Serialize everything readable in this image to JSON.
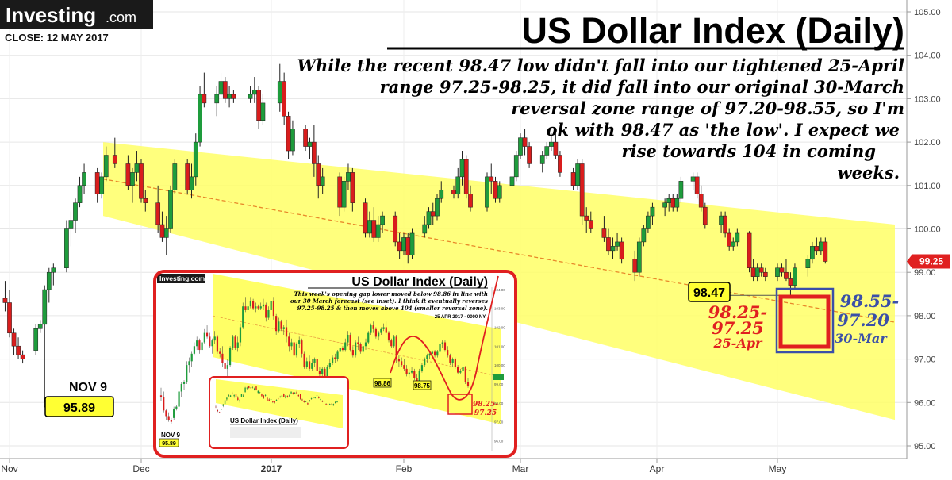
{
  "brand": {
    "name": "Investing",
    "suffix": ".com",
    "close_label": "CLOSE: 12 MAY 2017"
  },
  "headline": {
    "title": "US Dollar Index (Daily)",
    "commentary": [
      "While the recent 98.47 low didn't fall into our tightened 25-April",
      "range 97.25-98.25, it did fall into our original 30-March",
      "reversal zone range of 97.20-98.55, so I'm",
      "ok with 98.47 as 'the low'. I expect we",
      "rise towards 104 in coming",
      "weeks."
    ]
  },
  "annotations": {
    "nov9_label": "NOV 9",
    "nov9_value": "95.89",
    "low_value": "98.47",
    "last_price": "99.25",
    "range_apr": {
      "line1": "98.25-",
      "line2": "97.25",
      "date": "25-Apr"
    },
    "range_mar": {
      "line1": "98.55-",
      "line2": "97.20",
      "date": "30-Mar"
    }
  },
  "inset": {
    "brand": "Investing.com",
    "title": "US Dollar Index (Daily)",
    "note": [
      "This week's opening gap lower moved below 98.86 in line with",
      "our 30 March forecast (see inset). I think it eventually reverses",
      "97.25-98.25 & then moves above 104 (smaller reversal zone)."
    ],
    "date": "25 APR 2017 - 0000 NY",
    "label_a": "98.86",
    "label_b": "98.75",
    "range": {
      "line1": "98.25-",
      "line2": "97.25"
    },
    "nov": "NOV 9",
    "nov_value": "95.89",
    "inner_title": "US Dollar Index (Daily)"
  },
  "colors": {
    "up": "#1e9c3c",
    "down": "#d91d1d",
    "channel": "#ffff66",
    "accent_red": "#e02020",
    "accent_blue": "#3a4fa8"
  },
  "chart_data": {
    "type": "candlestick",
    "title": "US Dollar Index (Daily)",
    "ylim": [
      94.7,
      105.1
    ],
    "y_ticks": [
      "95.00",
      "96.00",
      "97.00",
      "98.00",
      "99.00",
      "100.00",
      "101.00",
      "102.00",
      "103.00",
      "104.00",
      "105.00"
    ],
    "x_ticks": [
      "Nov",
      "Dec",
      "2017",
      "Feb",
      "Mar",
      "Apr",
      "May"
    ],
    "channel": {
      "start_upper": 102.0,
      "start_lower": 100.3,
      "end_upper": 100.1,
      "end_lower": 95.6
    },
    "series_ohlc": [
      {
        "d": "2016-10-31",
        "o": 98.4,
        "h": 98.8,
        "l": 98.1,
        "c": 98.3
      },
      {
        "d": "2016-11-01",
        "o": 98.3,
        "h": 98.6,
        "l": 97.5,
        "c": 97.6
      },
      {
        "d": "2016-11-02",
        "o": 97.6,
        "h": 97.7,
        "l": 97.1,
        "c": 97.3
      },
      {
        "d": "2016-11-03",
        "o": 97.3,
        "h": 97.5,
        "l": 97.0,
        "c": 97.1
      },
      {
        "d": "2016-11-04",
        "o": 97.1,
        "h": 97.2,
        "l": 96.9,
        "c": 97.0
      },
      {
        "d": "2016-11-07",
        "o": 97.2,
        "h": 97.8,
        "l": 97.1,
        "c": 97.7
      },
      {
        "d": "2016-11-08",
        "o": 97.7,
        "h": 97.9,
        "l": 97.6,
        "c": 97.8
      },
      {
        "d": "2016-11-09",
        "o": 97.8,
        "h": 98.7,
        "l": 95.89,
        "c": 98.6
      },
      {
        "d": "2016-11-10",
        "o": 98.6,
        "h": 99.1,
        "l": 98.3,
        "c": 99.0
      },
      {
        "d": "2016-11-11",
        "o": 99.0,
        "h": 99.2,
        "l": 98.7,
        "c": 99.1
      },
      {
        "d": "2016-11-14",
        "o": 99.1,
        "h": 100.2,
        "l": 99.0,
        "c": 100.0
      },
      {
        "d": "2016-11-15",
        "o": 100.0,
        "h": 100.4,
        "l": 99.6,
        "c": 100.2
      },
      {
        "d": "2016-11-16",
        "o": 100.2,
        "h": 100.7,
        "l": 99.9,
        "c": 100.6
      },
      {
        "d": "2016-11-17",
        "o": 100.6,
        "h": 101.2,
        "l": 100.5,
        "c": 101.0
      },
      {
        "d": "2016-11-18",
        "o": 101.0,
        "h": 101.5,
        "l": 100.8,
        "c": 101.3
      },
      {
        "d": "2016-11-21",
        "o": 101.3,
        "h": 101.4,
        "l": 100.6,
        "c": 100.8
      },
      {
        "d": "2016-11-22",
        "o": 100.8,
        "h": 101.3,
        "l": 100.7,
        "c": 101.2
      },
      {
        "d": "2016-11-23",
        "o": 101.2,
        "h": 101.9,
        "l": 101.1,
        "c": 101.7
      },
      {
        "d": "2016-11-25",
        "o": 101.7,
        "h": 102.1,
        "l": 101.4,
        "c": 101.5
      },
      {
        "d": "2016-11-28",
        "o": 101.5,
        "h": 101.7,
        "l": 100.9,
        "c": 101.0
      },
      {
        "d": "2016-11-29",
        "o": 101.0,
        "h": 101.4,
        "l": 100.6,
        "c": 101.3
      },
      {
        "d": "2016-11-30",
        "o": 101.3,
        "h": 101.8,
        "l": 101.1,
        "c": 101.5
      },
      {
        "d": "2016-12-01",
        "o": 101.5,
        "h": 101.6,
        "l": 100.6,
        "c": 100.7
      },
      {
        "d": "2016-12-02",
        "o": 100.7,
        "h": 100.9,
        "l": 100.4,
        "c": 100.6
      },
      {
        "d": "2016-12-05",
        "o": 100.6,
        "h": 101.0,
        "l": 99.9,
        "c": 100.1
      },
      {
        "d": "2016-12-06",
        "o": 100.1,
        "h": 100.4,
        "l": 99.7,
        "c": 99.8
      },
      {
        "d": "2016-12-07",
        "o": 99.8,
        "h": 100.3,
        "l": 99.4,
        "c": 100.0
      },
      {
        "d": "2016-12-08",
        "o": 100.0,
        "h": 101.0,
        "l": 99.9,
        "c": 100.9
      },
      {
        "d": "2016-12-09",
        "o": 100.9,
        "h": 101.6,
        "l": 100.8,
        "c": 101.5
      },
      {
        "d": "2016-12-12",
        "o": 101.5,
        "h": 101.6,
        "l": 100.8,
        "c": 100.9
      },
      {
        "d": "2016-12-13",
        "o": 100.9,
        "h": 101.5,
        "l": 100.7,
        "c": 101.2
      },
      {
        "d": "2016-12-14",
        "o": 101.2,
        "h": 102.2,
        "l": 101.0,
        "c": 102.0
      },
      {
        "d": "2016-12-15",
        "o": 102.0,
        "h": 103.3,
        "l": 101.9,
        "c": 103.1
      },
      {
        "d": "2016-12-16",
        "o": 103.1,
        "h": 103.6,
        "l": 102.8,
        "c": 102.9
      },
      {
        "d": "2016-12-19",
        "o": 102.9,
        "h": 103.3,
        "l": 102.6,
        "c": 103.1
      },
      {
        "d": "2016-12-20",
        "o": 103.1,
        "h": 103.6,
        "l": 103.0,
        "c": 103.4
      },
      {
        "d": "2016-12-21",
        "o": 103.4,
        "h": 103.5,
        "l": 102.9,
        "c": 103.0
      },
      {
        "d": "2016-12-22",
        "o": 103.0,
        "h": 103.3,
        "l": 102.8,
        "c": 103.1
      },
      {
        "d": "2016-12-23",
        "o": 103.1,
        "h": 103.2,
        "l": 102.9,
        "c": 103.0
      },
      {
        "d": "2016-12-27",
        "o": 103.0,
        "h": 103.3,
        "l": 102.9,
        "c": 103.1
      },
      {
        "d": "2016-12-28",
        "o": 103.1,
        "h": 103.5,
        "l": 102.9,
        "c": 103.2
      },
      {
        "d": "2016-12-29",
        "o": 103.2,
        "h": 103.3,
        "l": 102.3,
        "c": 102.5
      },
      {
        "d": "2016-12-30",
        "o": 102.5,
        "h": 103.1,
        "l": 102.4,
        "c": 102.9
      },
      {
        "d": "2017-01-03",
        "o": 102.9,
        "h": 103.8,
        "l": 102.7,
        "c": 103.4
      },
      {
        "d": "2017-01-04",
        "o": 103.4,
        "h": 103.6,
        "l": 102.4,
        "c": 102.6
      },
      {
        "d": "2017-01-05",
        "o": 102.6,
        "h": 102.7,
        "l": 101.6,
        "c": 101.8
      },
      {
        "d": "2017-01-06",
        "o": 101.8,
        "h": 102.5,
        "l": 101.7,
        "c": 102.3
      },
      {
        "d": "2017-01-09",
        "o": 102.3,
        "h": 102.4,
        "l": 101.8,
        "c": 101.9
      },
      {
        "d": "2017-01-10",
        "o": 101.9,
        "h": 102.1,
        "l": 101.6,
        "c": 102.0
      },
      {
        "d": "2017-01-11",
        "o": 102.0,
        "h": 102.4,
        "l": 101.2,
        "c": 101.5
      },
      {
        "d": "2017-01-12",
        "o": 101.5,
        "h": 101.7,
        "l": 100.7,
        "c": 101.0
      },
      {
        "d": "2017-01-13",
        "o": 101.0,
        "h": 101.4,
        "l": 100.8,
        "c": 101.2
      },
      {
        "d": "2017-01-17",
        "o": 101.2,
        "h": 101.3,
        "l": 100.3,
        "c": 100.5
      },
      {
        "d": "2017-01-18",
        "o": 100.5,
        "h": 101.2,
        "l": 100.4,
        "c": 101.1
      },
      {
        "d": "2017-01-19",
        "o": 101.1,
        "h": 101.5,
        "l": 100.9,
        "c": 101.3
      },
      {
        "d": "2017-01-20",
        "o": 101.3,
        "h": 101.4,
        "l": 100.4,
        "c": 100.6
      },
      {
        "d": "2017-01-23",
        "o": 100.6,
        "h": 100.7,
        "l": 99.8,
        "c": 99.9
      },
      {
        "d": "2017-01-24",
        "o": 99.9,
        "h": 100.4,
        "l": 99.8,
        "c": 100.2
      },
      {
        "d": "2017-01-25",
        "o": 100.2,
        "h": 100.5,
        "l": 99.7,
        "c": 99.8
      },
      {
        "d": "2017-01-26",
        "o": 99.8,
        "h": 100.3,
        "l": 99.7,
        "c": 100.1
      },
      {
        "d": "2017-01-27",
        "o": 100.1,
        "h": 100.4,
        "l": 99.9,
        "c": 100.3
      },
      {
        "d": "2017-01-30",
        "o": 100.3,
        "h": 100.4,
        "l": 99.6,
        "c": 99.7
      },
      {
        "d": "2017-01-31",
        "o": 99.7,
        "h": 99.9,
        "l": 99.3,
        "c": 99.5
      },
      {
        "d": "2017-02-01",
        "o": 99.5,
        "h": 99.9,
        "l": 99.4,
        "c": 99.8
      },
      {
        "d": "2017-02-02",
        "o": 99.8,
        "h": 99.9,
        "l": 99.2,
        "c": 99.4
      },
      {
        "d": "2017-02-03",
        "o": 99.4,
        "h": 100.0,
        "l": 99.3,
        "c": 99.9
      },
      {
        "d": "2017-02-06",
        "o": 99.9,
        "h": 100.3,
        "l": 99.8,
        "c": 100.1
      },
      {
        "d": "2017-02-07",
        "o": 100.1,
        "h": 100.5,
        "l": 100.0,
        "c": 100.4
      },
      {
        "d": "2017-02-08",
        "o": 100.4,
        "h": 100.6,
        "l": 100.1,
        "c": 100.3
      },
      {
        "d": "2017-02-09",
        "o": 100.3,
        "h": 100.8,
        "l": 100.2,
        "c": 100.7
      },
      {
        "d": "2017-02-10",
        "o": 100.7,
        "h": 101.1,
        "l": 100.6,
        "c": 100.9
      },
      {
        "d": "2017-02-13",
        "o": 100.9,
        "h": 101.0,
        "l": 100.7,
        "c": 100.8
      },
      {
        "d": "2017-02-14",
        "o": 100.8,
        "h": 101.4,
        "l": 100.7,
        "c": 101.2
      },
      {
        "d": "2017-02-15",
        "o": 101.2,
        "h": 101.8,
        "l": 101.0,
        "c": 101.6
      },
      {
        "d": "2017-02-16",
        "o": 101.6,
        "h": 101.7,
        "l": 100.7,
        "c": 100.8
      },
      {
        "d": "2017-02-17",
        "o": 100.8,
        "h": 101.0,
        "l": 100.4,
        "c": 100.5
      },
      {
        "d": "2017-02-21",
        "o": 100.5,
        "h": 101.3,
        "l": 100.4,
        "c": 101.2
      },
      {
        "d": "2017-02-22",
        "o": 101.2,
        "h": 101.5,
        "l": 100.8,
        "c": 101.1
      },
      {
        "d": "2017-02-23",
        "o": 101.1,
        "h": 101.2,
        "l": 100.6,
        "c": 100.7
      },
      {
        "d": "2017-02-24",
        "o": 100.7,
        "h": 101.1,
        "l": 100.6,
        "c": 101.0
      },
      {
        "d": "2017-02-27",
        "o": 101.0,
        "h": 101.4,
        "l": 100.8,
        "c": 101.2
      },
      {
        "d": "2017-02-28",
        "o": 101.2,
        "h": 101.8,
        "l": 101.1,
        "c": 101.7
      },
      {
        "d": "2017-03-01",
        "o": 101.7,
        "h": 102.2,
        "l": 101.6,
        "c": 102.1
      },
      {
        "d": "2017-03-02",
        "o": 102.1,
        "h": 102.3,
        "l": 101.7,
        "c": 101.9
      },
      {
        "d": "2017-03-03",
        "o": 101.9,
        "h": 102.0,
        "l": 101.4,
        "c": 101.5
      },
      {
        "d": "2017-03-06",
        "o": 101.5,
        "h": 101.8,
        "l": 101.3,
        "c": 101.7
      },
      {
        "d": "2017-03-07",
        "o": 101.7,
        "h": 102.0,
        "l": 101.6,
        "c": 101.9
      },
      {
        "d": "2017-03-08",
        "o": 101.9,
        "h": 102.2,
        "l": 101.8,
        "c": 102.0
      },
      {
        "d": "2017-03-09",
        "o": 102.0,
        "h": 102.3,
        "l": 101.6,
        "c": 101.7
      },
      {
        "d": "2017-03-10",
        "o": 101.7,
        "h": 101.8,
        "l": 101.2,
        "c": 101.3
      },
      {
        "d": "2017-03-13",
        "o": 101.3,
        "h": 101.4,
        "l": 100.9,
        "c": 101.0
      },
      {
        "d": "2017-03-14",
        "o": 101.0,
        "h": 101.6,
        "l": 100.9,
        "c": 101.5
      },
      {
        "d": "2017-03-15",
        "o": 101.5,
        "h": 101.6,
        "l": 100.1,
        "c": 100.3
      },
      {
        "d": "2017-03-16",
        "o": 100.3,
        "h": 100.5,
        "l": 99.9,
        "c": 100.2
      },
      {
        "d": "2017-03-17",
        "o": 100.2,
        "h": 100.4,
        "l": 99.9,
        "c": 100.0
      },
      {
        "d": "2017-03-20",
        "o": 100.0,
        "h": 100.3,
        "l": 99.7,
        "c": 99.8
      },
      {
        "d": "2017-03-21",
        "o": 99.8,
        "h": 100.0,
        "l": 99.4,
        "c": 99.5
      },
      {
        "d": "2017-03-22",
        "o": 99.5,
        "h": 99.8,
        "l": 99.3,
        "c": 99.6
      },
      {
        "d": "2017-03-23",
        "o": 99.6,
        "h": 99.9,
        "l": 99.5,
        "c": 99.7
      },
      {
        "d": "2017-03-24",
        "o": 99.7,
        "h": 99.8,
        "l": 99.2,
        "c": 99.3
      },
      {
        "d": "2017-03-27",
        "o": 99.3,
        "h": 99.5,
        "l": 98.8,
        "c": 99.0
      },
      {
        "d": "2017-03-28",
        "o": 99.0,
        "h": 99.8,
        "l": 98.9,
        "c": 99.7
      },
      {
        "d": "2017-03-29",
        "o": 99.7,
        "h": 100.1,
        "l": 99.6,
        "c": 100.0
      },
      {
        "d": "2017-03-30",
        "o": 100.0,
        "h": 100.4,
        "l": 99.9,
        "c": 100.3
      },
      {
        "d": "2017-03-31",
        "o": 100.3,
        "h": 100.6,
        "l": 100.1,
        "c": 100.5
      },
      {
        "d": "2017-04-03",
        "o": 100.5,
        "h": 100.7,
        "l": 100.3,
        "c": 100.6
      },
      {
        "d": "2017-04-04",
        "o": 100.6,
        "h": 100.8,
        "l": 100.4,
        "c": 100.7
      },
      {
        "d": "2017-04-05",
        "o": 100.7,
        "h": 100.8,
        "l": 100.4,
        "c": 100.5
      },
      {
        "d": "2017-04-06",
        "o": 100.5,
        "h": 100.8,
        "l": 100.4,
        "c": 100.7
      },
      {
        "d": "2017-04-07",
        "o": 100.7,
        "h": 101.2,
        "l": 100.6,
        "c": 101.1
      },
      {
        "d": "2017-04-10",
        "o": 101.1,
        "h": 101.3,
        "l": 100.9,
        "c": 101.2
      },
      {
        "d": "2017-04-11",
        "o": 101.2,
        "h": 101.3,
        "l": 100.7,
        "c": 100.8
      },
      {
        "d": "2017-04-12",
        "o": 100.8,
        "h": 101.0,
        "l": 100.4,
        "c": 100.5
      },
      {
        "d": "2017-04-13",
        "o": 100.5,
        "h": 100.6,
        "l": 100.0,
        "c": 100.1
      },
      {
        "d": "2017-04-17",
        "o": 100.1,
        "h": 100.4,
        "l": 99.9,
        "c": 100.3
      },
      {
        "d": "2017-04-18",
        "o": 100.3,
        "h": 100.4,
        "l": 99.8,
        "c": 99.9
      },
      {
        "d": "2017-04-19",
        "o": 99.9,
        "h": 100.0,
        "l": 99.5,
        "c": 99.6
      },
      {
        "d": "2017-04-20",
        "o": 99.6,
        "h": 99.8,
        "l": 99.5,
        "c": 99.7
      },
      {
        "d": "2017-04-21",
        "o": 99.7,
        "h": 100.0,
        "l": 99.6,
        "c": 99.9
      },
      {
        "d": "2017-04-24",
        "o": 99.9,
        "h": 99.95,
        "l": 99.0,
        "c": 99.1
      },
      {
        "d": "2017-04-25",
        "o": 99.1,
        "h": 99.3,
        "l": 98.8,
        "c": 98.9
      },
      {
        "d": "2017-04-26",
        "o": 98.9,
        "h": 99.2,
        "l": 98.8,
        "c": 99.1
      },
      {
        "d": "2017-04-27",
        "o": 99.1,
        "h": 99.2,
        "l": 98.9,
        "c": 99.0
      },
      {
        "d": "2017-04-28",
        "o": 99.0,
        "h": 99.1,
        "l": 98.8,
        "c": 98.9
      },
      {
        "d": "2017-05-01",
        "o": 98.9,
        "h": 99.2,
        "l": 98.8,
        "c": 99.1
      },
      {
        "d": "2017-05-02",
        "o": 99.1,
        "h": 99.2,
        "l": 98.9,
        "c": 99.0
      },
      {
        "d": "2017-05-03",
        "o": 99.0,
        "h": 99.3,
        "l": 98.8,
        "c": 98.85
      },
      {
        "d": "2017-05-04",
        "o": 98.85,
        "h": 99.0,
        "l": 98.47,
        "c": 98.7
      },
      {
        "d": "2017-05-05",
        "o": 98.7,
        "h": 99.2,
        "l": 98.6,
        "c": 99.1
      },
      {
        "d": "2017-05-08",
        "o": 99.1,
        "h": 99.4,
        "l": 98.9,
        "c": 99.3
      },
      {
        "d": "2017-05-09",
        "o": 99.3,
        "h": 99.7,
        "l": 99.2,
        "c": 99.6
      },
      {
        "d": "2017-05-10",
        "o": 99.6,
        "h": 99.8,
        "l": 99.4,
        "c": 99.5
      },
      {
        "d": "2017-05-11",
        "o": 99.5,
        "h": 99.8,
        "l": 99.4,
        "c": 99.7
      },
      {
        "d": "2017-05-12",
        "o": 99.7,
        "h": 99.8,
        "l": 99.2,
        "c": 99.25
      }
    ]
  }
}
